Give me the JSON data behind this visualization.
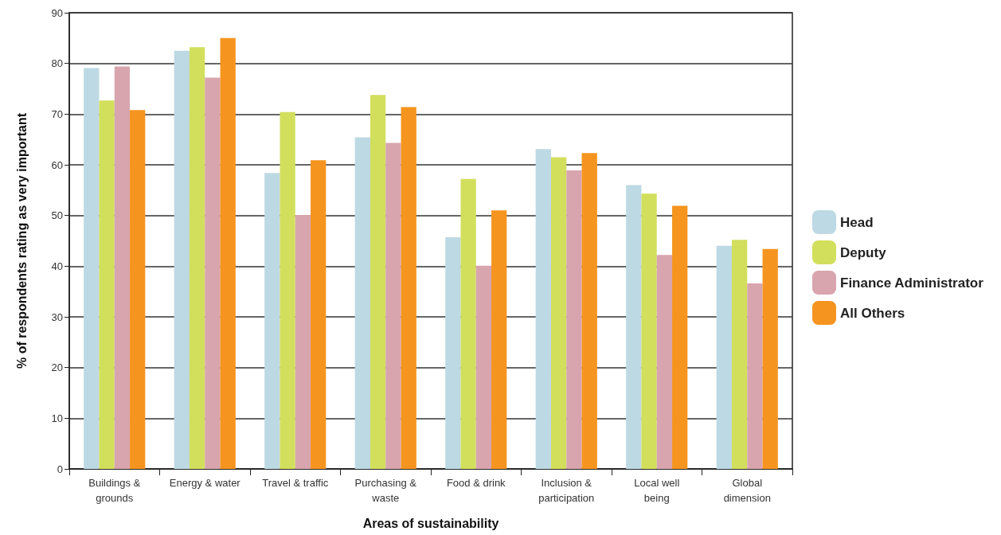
{
  "chart_data": {
    "type": "bar",
    "xlabel": "Areas of sustainability",
    "ylabel": "% of respondents rating as very important",
    "categories": [
      "Buildings &\ngrounds",
      "Energy & water",
      "Travel & traffic",
      "Purchasing &\nwaste",
      "Food & drink",
      "Inclusion &\nparticipation",
      "Local well\nbeing",
      "Global\ndimension"
    ],
    "series": [
      {
        "name": "Head",
        "color": "#bdd9e3",
        "values": [
          79.1,
          82.5,
          58.4,
          65.4,
          45.7,
          63.1,
          56.0,
          44.0
        ]
      },
      {
        "name": "Deputy",
        "color": "#d2df5c",
        "values": [
          72.7,
          83.2,
          70.4,
          73.8,
          57.2,
          61.5,
          54.3,
          45.2
        ]
      },
      {
        "name": "Finance Administrator",
        "color": "#d8a5ae",
        "values": [
          79.4,
          77.2,
          50.1,
          64.3,
          40.1,
          58.9,
          42.2,
          36.6
        ]
      },
      {
        "name": "All Others",
        "color": "#f59520",
        "values": [
          70.8,
          85.0,
          60.9,
          71.4,
          51.0,
          62.3,
          51.9,
          43.4
        ]
      }
    ],
    "ylim": [
      0,
      90
    ],
    "yticks": [
      0,
      10,
      20,
      30,
      40,
      50,
      60,
      70,
      80,
      90
    ],
    "grid": "y",
    "legend": "right"
  }
}
